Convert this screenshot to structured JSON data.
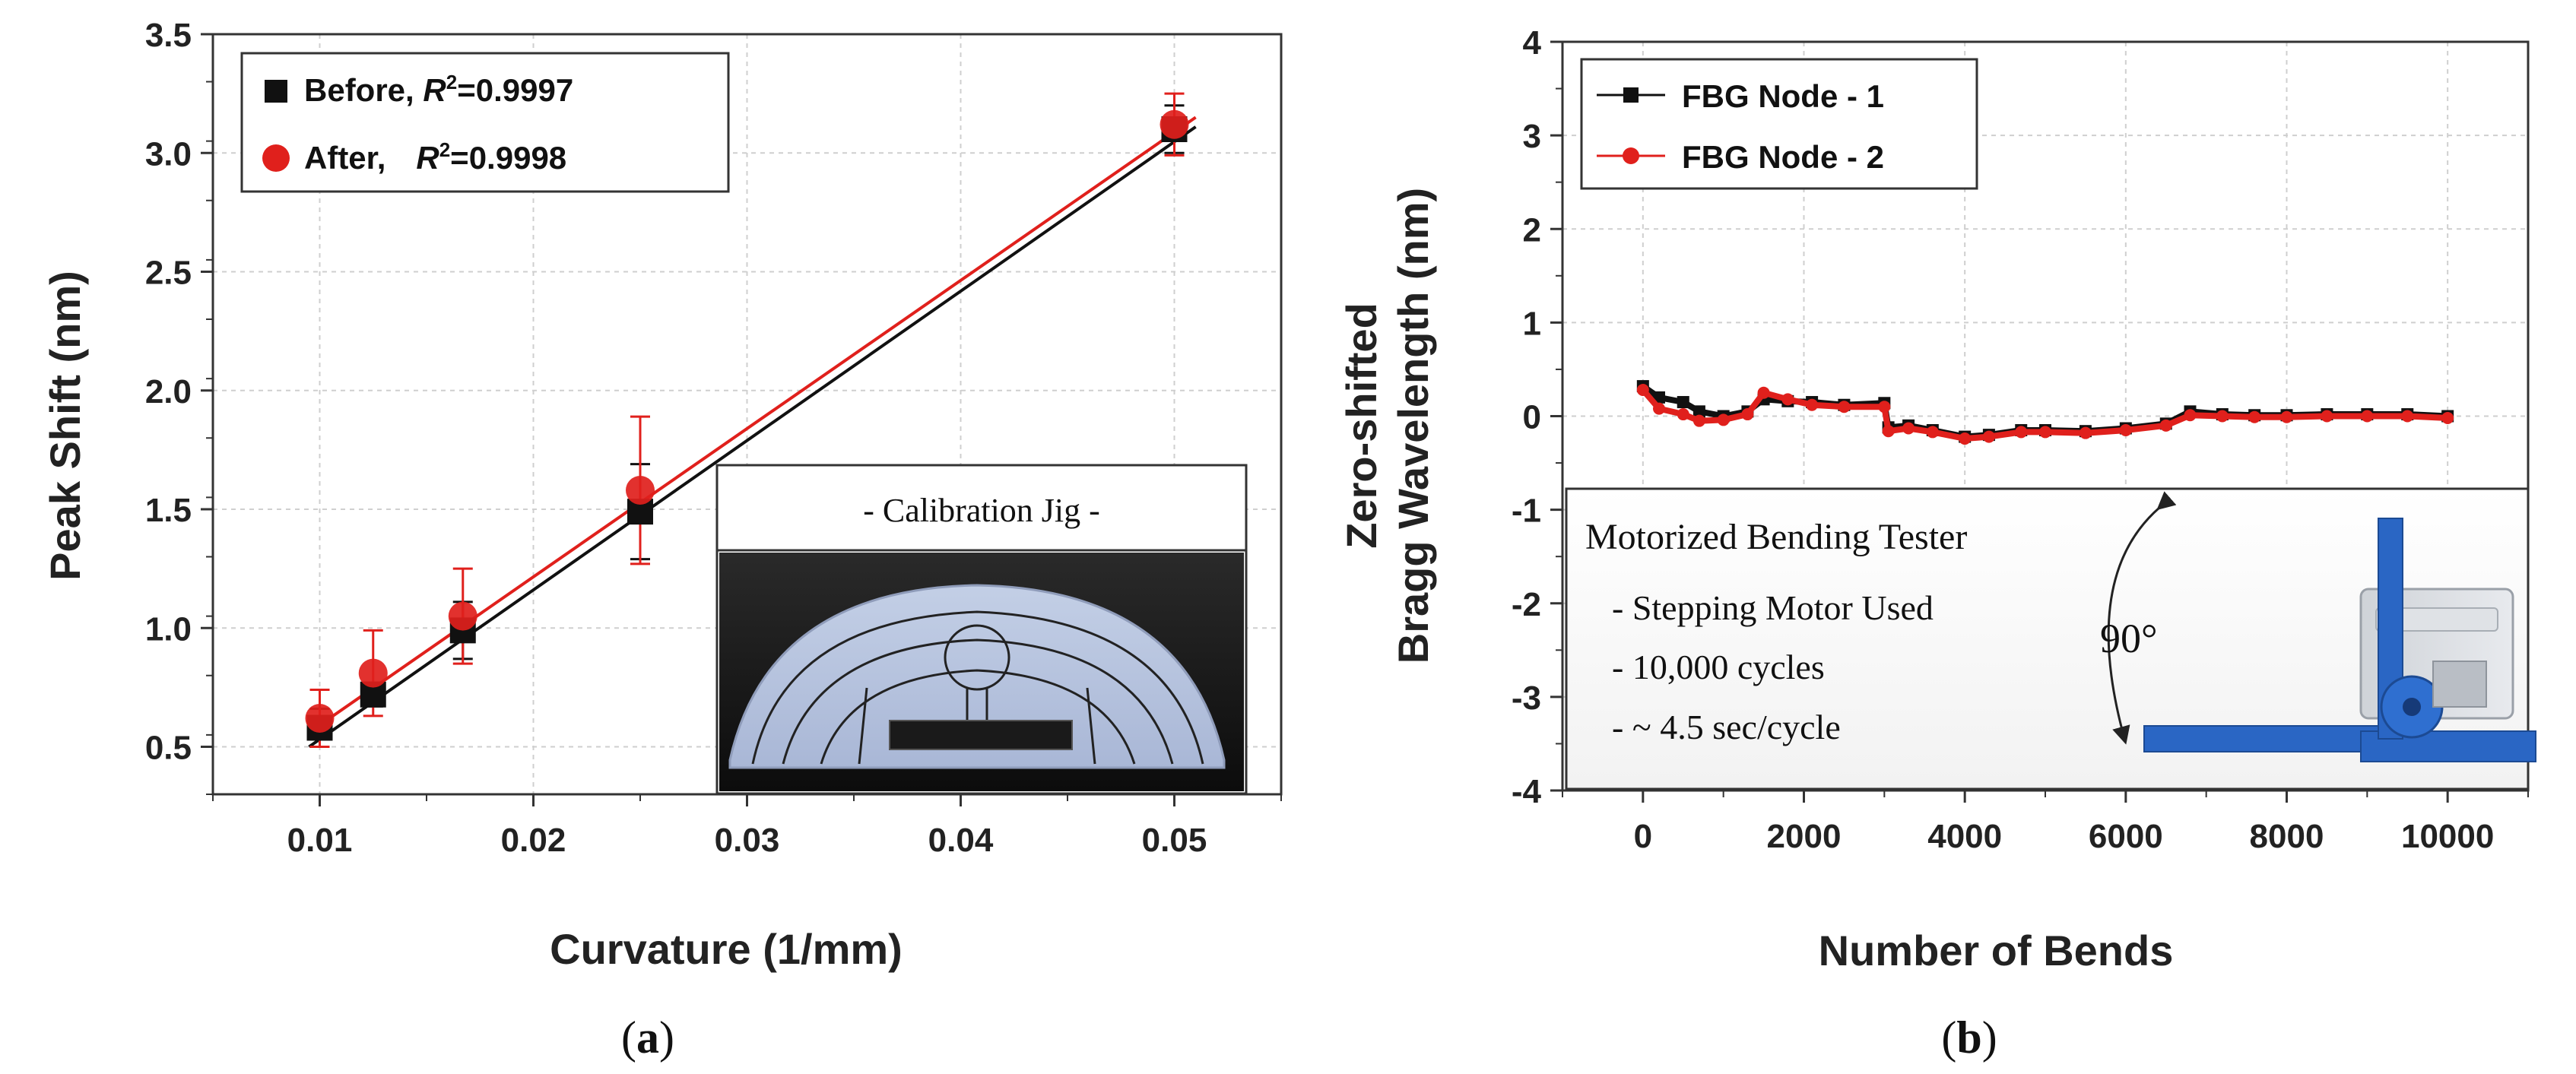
{
  "chart_data": [
    {
      "type": "scatter",
      "panel": "a",
      "xlabel": "Curvature (1/mm)",
      "ylabel": "Peak Shift (nm)",
      "xlim": [
        0.005,
        0.055
      ],
      "ylim": [
        0.3,
        3.5
      ],
      "xticks": [
        0.01,
        0.02,
        0.03,
        0.04,
        0.05
      ],
      "yticks": [
        0.5,
        1.0,
        1.5,
        2.0,
        2.5,
        3.0,
        3.5
      ],
      "grid": true,
      "legend_position": "top-left",
      "series": [
        {
          "name": "Before",
          "r2_label": "R",
          "r2_value": "=0.9997",
          "color": "#111111",
          "marker": "square",
          "x": [
            0.01,
            0.0125,
            0.0167,
            0.025,
            0.05
          ],
          "y": [
            0.58,
            0.72,
            0.99,
            1.49,
            3.1
          ],
          "err": [
            0.08,
            0.05,
            0.12,
            0.2,
            0.1
          ],
          "fit": [
            [
              0.0095,
              0.5
            ],
            [
              0.051,
              3.11
            ]
          ]
        },
        {
          "name": "After,",
          "r2_label": "R",
          "r2_value": "=0.9998",
          "color": "#e0201c",
          "marker": "circle",
          "x": [
            0.01,
            0.0125,
            0.0167,
            0.025,
            0.05
          ],
          "y": [
            0.62,
            0.81,
            1.05,
            1.58,
            3.12
          ],
          "err": [
            0.12,
            0.18,
            0.2,
            0.31,
            0.13
          ],
          "fit": [
            [
              0.0095,
              0.56
            ],
            [
              0.051,
              3.15
            ]
          ]
        }
      ],
      "inset": {
        "title": "- Calibration Jig -"
      }
    },
    {
      "type": "line",
      "panel": "b",
      "xlabel": "Number of Bends",
      "ylabel_line1": "Zero-shifted",
      "ylabel_line2": "Bragg Wavelength (nm)",
      "xlim": [
        -1000,
        11000
      ],
      "ylim": [
        -4,
        4
      ],
      "xticks": [
        0,
        2000,
        4000,
        6000,
        8000,
        10000
      ],
      "yticks": [
        -4,
        -3,
        -2,
        -1,
        0,
        1,
        2,
        3,
        4
      ],
      "grid": true,
      "legend_position": "top-left",
      "series": [
        {
          "name": "FBG Node - 1",
          "color": "#111111",
          "marker": "square",
          "x": [
            0,
            200,
            500,
            700,
            1000,
            1300,
            1500,
            1800,
            2100,
            2500,
            3000,
            3050,
            3300,
            3600,
            4000,
            4300,
            4700,
            5000,
            5500,
            6000,
            6500,
            6800,
            7200,
            7600,
            8000,
            8500,
            9000,
            9500,
            10000
          ],
          "y": [
            0.32,
            0.2,
            0.15,
            0.05,
            0.0,
            0.05,
            0.18,
            0.16,
            0.15,
            0.12,
            0.14,
            -0.12,
            -0.1,
            -0.15,
            -0.22,
            -0.2,
            -0.15,
            -0.15,
            -0.16,
            -0.13,
            -0.08,
            0.05,
            0.02,
            0.01,
            0.01,
            0.02,
            0.02,
            0.02,
            0.0
          ]
        },
        {
          "name": "FBG Node - 2",
          "color": "#e0201c",
          "marker": "circle",
          "x": [
            0,
            200,
            500,
            700,
            1000,
            1300,
            1500,
            1800,
            2100,
            2500,
            3000,
            3050,
            3300,
            3600,
            4000,
            4300,
            4700,
            5000,
            5500,
            6000,
            6500,
            6800,
            7200,
            7600,
            8000,
            8500,
            9000,
            9500,
            10000
          ],
          "y": [
            0.28,
            0.08,
            0.02,
            -0.05,
            -0.04,
            0.02,
            0.25,
            0.18,
            0.12,
            0.1,
            0.1,
            -0.16,
            -0.13,
            -0.17,
            -0.24,
            -0.22,
            -0.17,
            -0.17,
            -0.18,
            -0.15,
            -0.1,
            0.01,
            0.0,
            -0.01,
            -0.01,
            0.0,
            0.0,
            0.0,
            -0.02
          ]
        }
      ],
      "inset": {
        "title": "Motorized Bending Tester",
        "lines": [
          "- Stepping Motor Used",
          "- 10,000 cycles",
          "- ~ 4.5 sec/cycle"
        ],
        "angle": "90°"
      }
    }
  ],
  "panel_labels": {
    "a_open": "(",
    "a": "a",
    "a_close": ")",
    "b_open": "(",
    "b": "b",
    "b_close": ")"
  }
}
